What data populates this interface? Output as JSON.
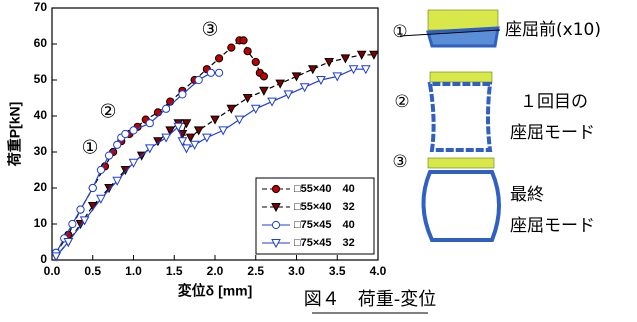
{
  "chart_data": {
    "type": "line",
    "x_label": "変位δ [mm]",
    "y_label": "荷重P[kN]",
    "xlim": [
      0,
      4
    ],
    "ylim": [
      0,
      70
    ],
    "xticks": [
      {
        "value": 0,
        "label": "0.0"
      },
      {
        "value": 0.5,
        "label": "0.5"
      },
      {
        "value": 1,
        "label": "1.0"
      },
      {
        "value": 1.5,
        "label": "1.5"
      },
      {
        "value": 2,
        "label": "2.0"
      },
      {
        "value": 2.5,
        "label": "2.5"
      },
      {
        "value": 3,
        "label": "3.0"
      },
      {
        "value": 3.5,
        "label": "3.5"
      },
      {
        "value": 4,
        "label": "4.0"
      }
    ],
    "yticks": [
      0,
      10,
      20,
      30,
      40,
      50,
      60,
      70
    ],
    "legend": "lower right",
    "annotations": [
      "①",
      "②",
      "③"
    ],
    "series": [
      {
        "name": "□55×40　40",
        "color": "#c00000",
        "line_color": "#000000",
        "marker": "circle",
        "filled": true,
        "x": [
          0.05,
          0.2,
          0.35,
          0.5,
          0.65,
          0.75,
          0.85,
          0.95,
          1.05,
          1.15,
          1.3,
          1.45,
          1.6,
          1.75,
          1.9,
          2.05,
          2.2,
          2.3,
          2.35,
          2.4,
          2.5,
          2.55,
          2.6
        ],
        "values": [
          2,
          7,
          14,
          20,
          26,
          30,
          33,
          35,
          37,
          39,
          41,
          44,
          47,
          50,
          53,
          56,
          59,
          61,
          61,
          58,
          55,
          52,
          51
        ]
      },
      {
        "name": "□55×40　32",
        "color": "#800000",
        "line_color": "#000000",
        "marker": "triangle-down",
        "filled": true,
        "x": [
          0.05,
          0.2,
          0.35,
          0.5,
          0.7,
          0.9,
          1.1,
          1.3,
          1.45,
          1.55,
          1.65,
          1.6,
          1.7,
          1.8,
          2.0,
          2.2,
          2.4,
          2.6,
          2.8,
          3.0,
          3.2,
          3.4,
          3.6,
          3.8,
          3.95
        ],
        "values": [
          1,
          5,
          10,
          15,
          20,
          25,
          29,
          33,
          36,
          38,
          38,
          35,
          34,
          36,
          39,
          42,
          45,
          47,
          49,
          51,
          53,
          55,
          56,
          57,
          57
        ]
      },
      {
        "name": "□75×45　40",
        "color": "#1f3fd0",
        "line_color": "#1f3fd0",
        "marker": "circle",
        "filled": false,
        "x": [
          0.05,
          0.15,
          0.25,
          0.35,
          0.5,
          0.6,
          0.7,
          0.8,
          0.85,
          0.9,
          1.0,
          1.2,
          1.4,
          1.6,
          1.8,
          1.95,
          2.05
        ],
        "values": [
          2,
          6,
          10,
          14,
          20,
          25,
          29,
          32,
          34,
          35,
          36,
          38,
          42,
          46,
          50,
          52,
          52
        ]
      },
      {
        "name": "□75×45　32",
        "color": "#1f3fd0",
        "line_color": "#1f3fd0",
        "marker": "triangle-down",
        "filled": false,
        "x": [
          0.05,
          0.2,
          0.4,
          0.6,
          0.8,
          1.0,
          1.2,
          1.4,
          1.55,
          1.6,
          1.65,
          1.75,
          1.9,
          2.1,
          2.3,
          2.5,
          2.7,
          2.9,
          3.1,
          3.3,
          3.5,
          3.7,
          3.85
        ],
        "values": [
          1,
          5,
          11,
          17,
          22,
          27,
          31,
          34,
          37,
          33,
          31,
          32,
          34,
          36,
          39,
          42,
          44,
          46,
          48,
          50,
          51,
          53,
          53
        ]
      }
    ]
  },
  "diagram": {
    "items": [
      {
        "number": "①",
        "lines": [
          "座屈前(x10)"
        ]
      },
      {
        "number": "②",
        "lines": [
          "１回目の",
          "座屈モード"
        ]
      },
      {
        "number": "③",
        "lines": [
          "最終",
          "座屈モード"
        ]
      }
    ]
  },
  "caption": "図４　荷重-変位"
}
